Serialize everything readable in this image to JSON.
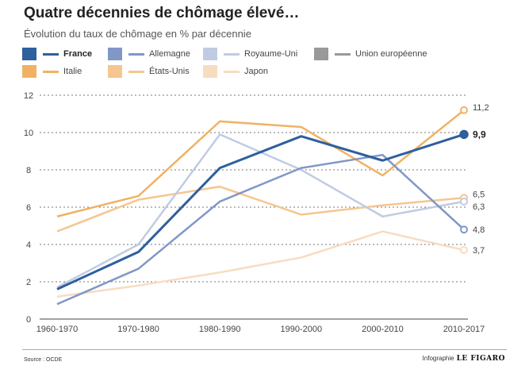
{
  "header": {
    "title": "Quatre décennies de chômage élevé…",
    "subtitle": "Évolution du taux de chômage en % par décennie"
  },
  "legend": [
    {
      "name": "France",
      "swatch": "#2e5f9e",
      "line": "#2e5f9e",
      "bold": true
    },
    {
      "name": "Allemagne",
      "swatch": "#8097c7",
      "line": "#8097c7",
      "bold": false
    },
    {
      "name": "Royaume-Uni",
      "swatch": "#c0cbe3",
      "line": "#c0cbe3",
      "bold": false
    },
    {
      "name": "Union européenne",
      "swatch": "#999999",
      "line": "#999999",
      "bold": false
    },
    {
      "name": "Italie",
      "swatch": "#f0b262",
      "line": "#f0b262",
      "bold": false
    },
    {
      "name": "États-Unis",
      "swatch": "#f5c690",
      "line": "#f5c690",
      "bold": false
    },
    {
      "name": "Japon",
      "swatch": "#f8dcc0",
      "line": "#f8dcc0",
      "bold": false
    }
  ],
  "chart_data": {
    "type": "line",
    "title": "Quatre décennies de chômage élevé…",
    "subtitle": "Évolution du taux de chômage en % par décennie",
    "xlabel": "",
    "ylabel": "",
    "categories": [
      "1960-1970",
      "1970-1980",
      "1980-1990",
      "1990-2000",
      "2000-2010",
      "2010-2017"
    ],
    "yticks": [
      0,
      2,
      4,
      6,
      8,
      10,
      12
    ],
    "ylim": [
      0,
      12
    ],
    "grid": "horizontal dotted",
    "legend_position": "top",
    "series": [
      {
        "name": "Japon",
        "color": "#f8dcc0",
        "width": 2.5,
        "values": [
          1.2,
          1.8,
          2.5,
          3.3,
          4.7,
          3.7
        ],
        "end_label": "3,7",
        "end_bold": false
      },
      {
        "name": "États-Unis",
        "color": "#f5c690",
        "width": 2.5,
        "values": [
          4.7,
          6.4,
          7.1,
          5.6,
          6.1,
          6.5
        ],
        "end_label": "6,5",
        "end_bold": false
      },
      {
        "name": "Royaume-Uni",
        "color": "#c0cbe3",
        "width": 2.5,
        "values": [
          1.7,
          4.0,
          9.9,
          8.0,
          5.5,
          6.3
        ],
        "end_label": "6,3",
        "end_bold": false
      },
      {
        "name": "Italie",
        "color": "#f0b262",
        "width": 2.5,
        "values": [
          5.5,
          6.6,
          10.6,
          10.3,
          7.7,
          11.2
        ],
        "end_label": "11,2",
        "end_bold": false
      },
      {
        "name": "Allemagne",
        "color": "#8097c7",
        "width": 2.5,
        "values": [
          0.8,
          2.7,
          6.3,
          8.1,
          8.8,
          4.8
        ],
        "end_label": "4,8",
        "end_bold": false
      },
      {
        "name": "France",
        "color": "#2e5f9e",
        "width": 3,
        "values": [
          1.6,
          3.6,
          8.1,
          9.8,
          8.5,
          9.9
        ],
        "end_label": "9,9",
        "end_bold": true
      }
    ]
  },
  "footer": {
    "source": "Source : OCDE",
    "credit": "Infographie",
    "brand": "LE FIGARO"
  }
}
